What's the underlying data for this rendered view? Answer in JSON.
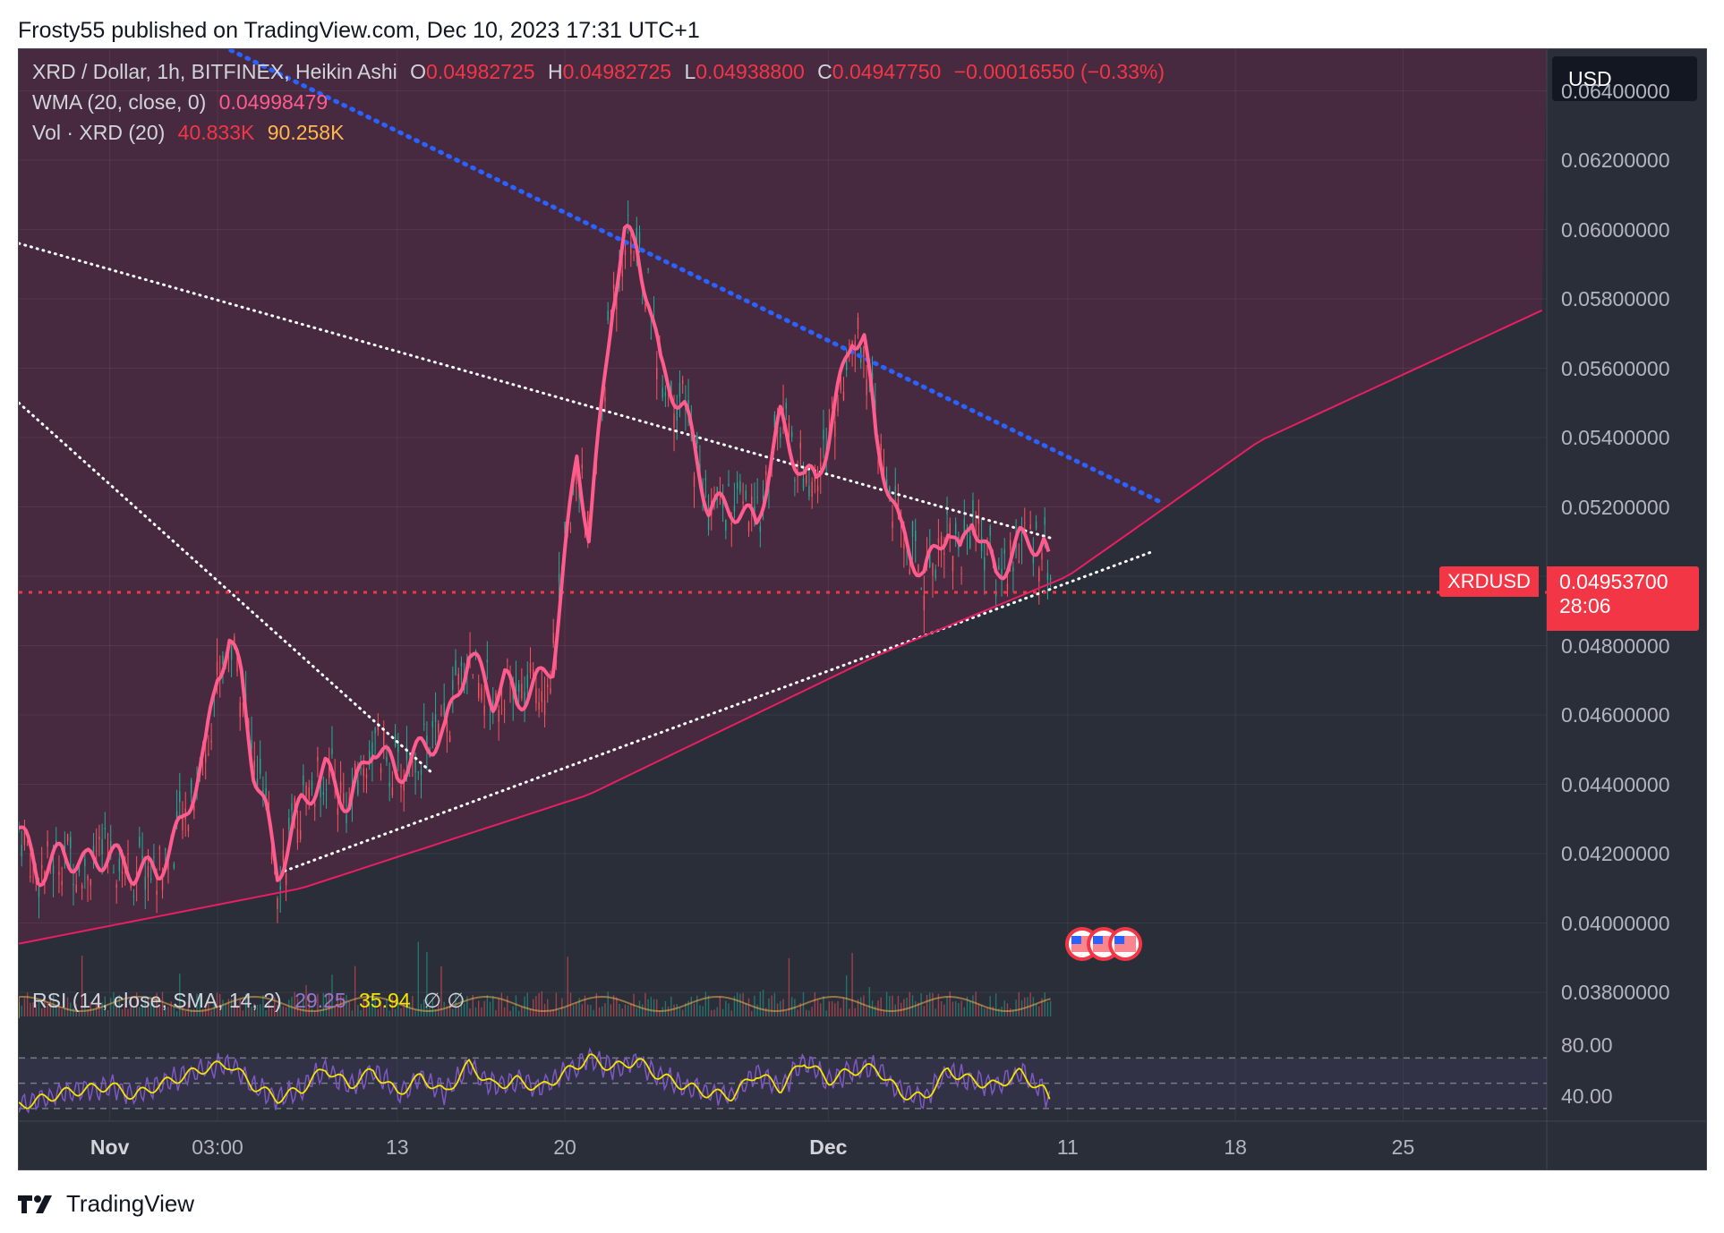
{
  "header": {
    "publisher_line": "Frosty55 published on TradingView.com, Dec 10, 2023 17:31 UTC+1"
  },
  "legend": {
    "symbol": "XRD / Dollar, 1h, BITFINEX, Heikin Ashi",
    "open_label": "O",
    "open": "0.04982725",
    "high_label": "H",
    "high": "0.04982725",
    "low_label": "L",
    "low": "0.04938800",
    "close_label": "C",
    "close": "0.04947750",
    "change": "−0.00016550 (−0.33%)",
    "wma_label": "WMA (20, close, 0)",
    "wma_value": "0.04998479",
    "vol_label": "Vol · XRD (20)",
    "vol_value": "40.833K",
    "vol_ma": "90.258K",
    "rsi_label": "RSI (14, close, SMA, 14, 2)",
    "rsi_value": "29.25",
    "rsi_ma": "35.94",
    "rsi_extra": "∅  ∅"
  },
  "currency_button": "USD",
  "price_axis": [
    "0.06400000",
    "0.06200000",
    "0.06000000",
    "0.05800000",
    "0.05600000",
    "0.05400000",
    "0.05200000",
    "0.05000000",
    "0.04800000",
    "0.04600000",
    "0.04400000",
    "0.04200000",
    "0.04000000",
    "0.03800000"
  ],
  "rsi_axis": [
    "80.00",
    "40.00"
  ],
  "time_axis": [
    {
      "label": "Nov",
      "bold": true,
      "day": 0
    },
    {
      "label": "03:00",
      "bold": false,
      "day": 4.5
    },
    {
      "label": "13",
      "bold": false,
      "day": 12
    },
    {
      "label": "20",
      "bold": false,
      "day": 19
    },
    {
      "label": "Dec",
      "bold": true,
      "day": 30
    },
    {
      "label": "11",
      "bold": false,
      "day": 40
    },
    {
      "label": "18",
      "bold": false,
      "day": 47
    },
    {
      "label": "25",
      "bold": false,
      "day": 54
    }
  ],
  "last_price": {
    "symbol": "XRDUSD",
    "price": "0.04953700",
    "countdown": "28:06"
  },
  "footer": {
    "brand": "TradingView"
  },
  "colors": {
    "bull": "#22ab94",
    "bear": "#f7525f",
    "wma": "#ff5b8d",
    "trend_blue": "#2962ff",
    "curve": "#e91e63",
    "zone": "#4a2a40"
  },
  "chart_data": {
    "type": "line",
    "title": "XRD / Dollar, 1h, BITFINEX, Heikin Ashi",
    "xlabel": "",
    "ylabel": "",
    "ylim": [
      0.0372,
      0.0652
    ],
    "x_unit": "days since Nov 1, 2023",
    "xlim": [
      -3.8,
      60
    ],
    "wma_series": {
      "name": "WMA (20, close, 0)",
      "x": [
        -3.8,
        -3,
        -2,
        -1,
        0,
        1,
        2,
        3,
        4,
        4.5,
        5,
        5.5,
        6,
        6.5,
        7,
        8,
        9,
        10,
        11,
        12,
        13,
        14,
        15,
        16,
        16.5,
        17,
        18,
        18.5,
        19,
        19.5,
        20,
        20.5,
        21,
        21.5,
        22,
        22.5,
        23,
        24,
        25,
        26,
        27,
        28,
        29,
        29.5,
        30,
        31,
        31.5,
        32,
        33,
        34,
        35,
        35.5,
        36,
        37,
        38,
        39,
        39.3
      ],
      "y": [
        0.0428,
        0.0414,
        0.042,
        0.0417,
        0.042,
        0.0415,
        0.0415,
        0.0428,
        0.045,
        0.0472,
        0.0482,
        0.047,
        0.0445,
        0.0432,
        0.0414,
        0.0434,
        0.0444,
        0.0434,
        0.0452,
        0.0443,
        0.045,
        0.0455,
        0.0478,
        0.0465,
        0.047,
        0.0464,
        0.047,
        0.0475,
        0.0505,
        0.0535,
        0.0512,
        0.0545,
        0.058,
        0.0598,
        0.0595,
        0.058,
        0.056,
        0.0548,
        0.052,
        0.052,
        0.0515,
        0.0545,
        0.0528,
        0.0528,
        0.054,
        0.057,
        0.0568,
        0.054,
        0.0513,
        0.05,
        0.0515,
        0.0505,
        0.0518,
        0.05,
        0.051,
        0.051,
        0.05
      ]
    },
    "volume": {
      "label": "Vol · XRD (20)",
      "last": "40.833K",
      "ma": "90.258K"
    },
    "rsi": {
      "label": "RSI (14, close, SMA, 14, 2)",
      "ylim": [
        20,
        100
      ],
      "bands": [
        70,
        50,
        30
      ],
      "x": [
        -3.8,
        -2,
        0,
        1,
        2,
        3,
        4,
        5,
        6,
        7,
        8,
        9,
        10,
        11,
        12,
        13,
        14,
        15,
        16,
        17,
        18,
        19,
        20,
        21,
        22,
        23,
        24,
        25,
        26,
        27,
        28,
        29,
        30,
        31,
        32,
        33,
        34,
        35,
        36,
        37,
        38,
        39,
        39.3
      ],
      "y": [
        32,
        42,
        48,
        40,
        48,
        55,
        62,
        65,
        48,
        38,
        45,
        62,
        48,
        60,
        42,
        55,
        42,
        65,
        48,
        52,
        46,
        58,
        70,
        62,
        68,
        55,
        48,
        42,
        40,
        58,
        46,
        68,
        52,
        60,
        62,
        42,
        38,
        60,
        52,
        48,
        58,
        44,
        35
      ]
    },
    "drawings": {
      "upper_blue_trend": [
        [
          -1,
          0.0672
        ],
        [
          44,
          0.0521
        ]
      ],
      "white_desc_1": [
        [
          -3.8,
          0.0596
        ],
        [
          39.3,
          0.0511
        ]
      ],
      "white_desc_2": [
        [
          -3.8,
          0.055
        ],
        [
          13.5,
          0.0443
        ]
      ],
      "white_asc": [
        [
          7.3,
          0.0415
        ],
        [
          43.5,
          0.0507
        ]
      ],
      "curve_support": [
        [
          -3.8,
          0.0394
        ],
        [
          8,
          0.041
        ],
        [
          20,
          0.0437
        ],
        [
          32,
          0.0477
        ],
        [
          40,
          0.05
        ],
        [
          48,
          0.0539
        ],
        [
          59.9,
          0.0577
        ]
      ],
      "last_price_line": 0.049537
    }
  }
}
